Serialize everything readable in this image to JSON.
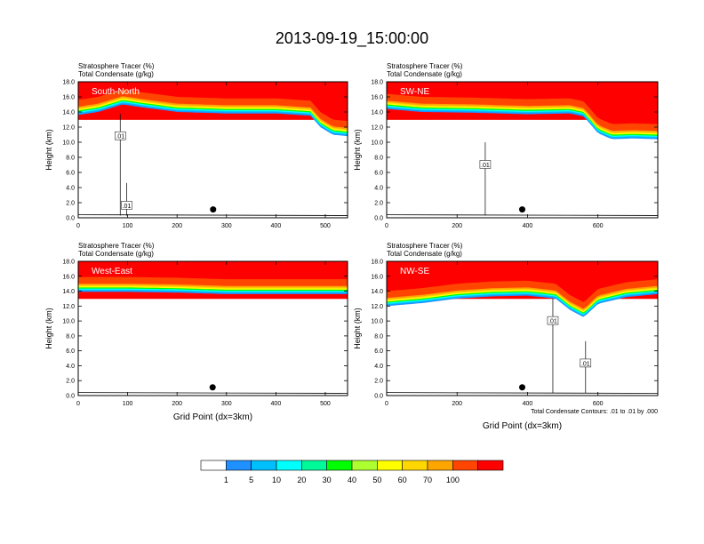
{
  "title": "2013-09-19_15:00:00",
  "chart_data": [
    {
      "type": "heatmap",
      "subtitle_line1": "Stratosphere Tracer   (%)",
      "subtitle_line2": "Total Condensate   (g/kg)",
      "panel_label": "South-North",
      "ylabel": "Height (km)",
      "xlabel": "",
      "xlim": [
        0,
        545
      ],
      "ylim": [
        0,
        18
      ],
      "x_ticks": [
        0,
        100,
        200,
        300,
        400,
        500
      ],
      "y_ticks": [
        "0.0",
        "2.0",
        "4.0",
        "6.0",
        "8.0",
        "10.0",
        "12.0",
        "14.0",
        "16.0",
        "18.0"
      ],
      "tracer_base": [
        [
          0,
          13.6
        ],
        [
          40,
          14.0
        ],
        [
          90,
          15.0
        ],
        [
          130,
          14.6
        ],
        [
          200,
          14.0
        ],
        [
          300,
          13.8
        ],
        [
          400,
          13.8
        ],
        [
          470,
          13.5
        ],
        [
          490,
          12.0
        ],
        [
          515,
          11.0
        ],
        [
          545,
          10.8
        ]
      ],
      "contour_labels": [
        {
          "text": ".01",
          "x": 85,
          "y": 10.8
        },
        {
          "text": ".01",
          "x": 98,
          "y": 1.6
        }
      ],
      "marker": {
        "x": 273,
        "y": 1.1
      }
    },
    {
      "type": "heatmap",
      "subtitle_line1": "Stratosphere Tracer   (%)",
      "subtitle_line2": "Total Condensate   (g/kg)",
      "panel_label": "SW-NE",
      "ylabel": "Height (km)",
      "xlabel": "",
      "xlim": [
        0,
        770
      ],
      "ylim": [
        0,
        18
      ],
      "x_ticks": [
        0,
        200,
        400,
        600
      ],
      "y_ticks": [
        "0.0",
        "2.0",
        "4.0",
        "6.0",
        "8.0",
        "10.0",
        "12.0",
        "14.0",
        "16.0",
        "18.0"
      ],
      "tracer_base": [
        [
          0,
          14.4
        ],
        [
          100,
          14.0
        ],
        [
          250,
          13.9
        ],
        [
          400,
          13.7
        ],
        [
          520,
          13.8
        ],
        [
          560,
          13.4
        ],
        [
          600,
          11.2
        ],
        [
          640,
          10.4
        ],
        [
          700,
          10.5
        ],
        [
          770,
          10.4
        ]
      ],
      "contour_labels": [
        {
          "text": ".01",
          "x": 280,
          "y": 7.0
        }
      ],
      "marker": {
        "x": 385,
        "y": 1.1
      }
    },
    {
      "type": "heatmap",
      "subtitle_line1": "Stratosphere Tracer   (%)",
      "subtitle_line2": "Total Condensate   (g/kg)",
      "panel_label": "West-East",
      "ylabel": "Height (km)",
      "xlabel": "Grid Point (dx=3km)",
      "xlim": [
        0,
        545
      ],
      "ylim": [
        0,
        18
      ],
      "x_ticks": [
        0,
        100,
        200,
        300,
        400,
        500
      ],
      "y_ticks": [
        "0.0",
        "2.0",
        "4.0",
        "6.0",
        "8.0",
        "10.0",
        "12.0",
        "14.0",
        "16.0",
        "18.0"
      ],
      "tracer_base": [
        [
          0,
          13.9
        ],
        [
          100,
          13.9
        ],
        [
          200,
          13.8
        ],
        [
          300,
          13.6
        ],
        [
          400,
          13.6
        ],
        [
          500,
          13.6
        ],
        [
          545,
          13.6
        ]
      ],
      "contour_labels": [],
      "marker": {
        "x": 272,
        "y": 1.1
      }
    },
    {
      "type": "heatmap",
      "subtitle_line1": "Stratosphere Tracer   (%)",
      "subtitle_line2": "Total Condensate   (g/kg)",
      "panel_label": "NW-SE",
      "ylabel": "Height (km)",
      "xlabel": "Grid Point (dx=3km)",
      "xlim": [
        0,
        770
      ],
      "ylim": [
        0,
        18
      ],
      "x_ticks": [
        0,
        200,
        400,
        600
      ],
      "y_ticks": [
        "0.0",
        "2.0",
        "4.0",
        "6.0",
        "8.0",
        "10.0",
        "12.0",
        "14.0",
        "16.0",
        "18.0"
      ],
      "tracer_base": [
        [
          0,
          12.0
        ],
        [
          100,
          12.4
        ],
        [
          200,
          13.0
        ],
        [
          300,
          13.3
        ],
        [
          400,
          13.4
        ],
        [
          480,
          13.0
        ],
        [
          520,
          11.5
        ],
        [
          560,
          10.5
        ],
        [
          600,
          12.3
        ],
        [
          680,
          13.2
        ],
        [
          770,
          13.6
        ]
      ],
      "contour_labels": [
        {
          "text": ".01",
          "x": 472,
          "y": 10.0
        },
        {
          "text": ".01",
          "x": 565,
          "y": 4.3
        }
      ],
      "marker": {
        "x": 385,
        "y": 1.1
      },
      "footnote": "Total Condensate Contours: .01 to .01 by .000"
    }
  ],
  "colorbar": {
    "labels": [
      "1",
      "5",
      "10",
      "20",
      "30",
      "40",
      "50",
      "60",
      "70",
      "100"
    ],
    "colors": [
      "#ffffff",
      "#1e90ff",
      "#00bfff",
      "#00ffff",
      "#00fa9a",
      "#00ff00",
      "#adff2f",
      "#ffff00",
      "#ffd700",
      "#ffa500",
      "#ff4500",
      "#ff0000"
    ]
  }
}
